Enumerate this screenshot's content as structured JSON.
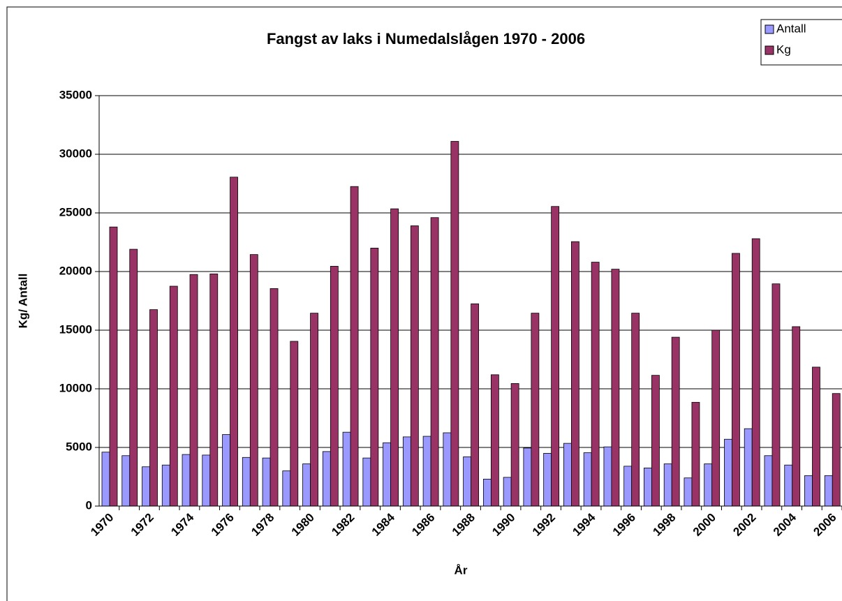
{
  "chart_data": {
    "type": "bar",
    "title": "Fangst av laks i Numedalslågen 1970 - 2006",
    "x_label": "År",
    "y_label": "Kg/ Antall",
    "categories": [
      "1970",
      null,
      "1972",
      null,
      "1974",
      null,
      "1976",
      null,
      "1978",
      null,
      "1980",
      null,
      "1982",
      null,
      "1984",
      null,
      "1986",
      null,
      "1988",
      null,
      "1990",
      null,
      "1992",
      null,
      "1994",
      null,
      "1996",
      null,
      "1998",
      null,
      "2000",
      null,
      "2002",
      null,
      "2004",
      null,
      "2006"
    ],
    "series": [
      {
        "name": "Antall",
        "color": "#9999ff",
        "values": [
          4600,
          4300,
          3350,
          3500,
          4400,
          4350,
          6100,
          4150,
          4100,
          3000,
          3600,
          4650,
          6300,
          4100,
          5400,
          5900,
          5950,
          6250,
          4200,
          2300,
          2450,
          4950,
          4500,
          5350,
          4550,
          5050,
          3400,
          3250,
          3600,
          2400,
          3600,
          5700,
          6600,
          4300,
          3500,
          2600,
          2600
        ]
      },
      {
        "name": "Kg",
        "color": "#993366",
        "values": [
          23800,
          21900,
          16750,
          18750,
          19750,
          19800,
          28050,
          21450,
          18550,
          14050,
          16450,
          20450,
          27250,
          22000,
          25350,
          23900,
          24600,
          31100,
          17250,
          11200,
          10450,
          16450,
          25550,
          22550,
          20800,
          20200,
          16450,
          11150,
          14400,
          8850,
          15000,
          21550,
          22800,
          18950,
          15300,
          11850,
          9600
        ]
      }
    ],
    "ylim": [
      0,
      35000
    ],
    "yticks": [
      0,
      5000,
      10000,
      15000,
      20000,
      25000,
      30000,
      35000
    ],
    "grid": true,
    "legend": "top-right"
  }
}
